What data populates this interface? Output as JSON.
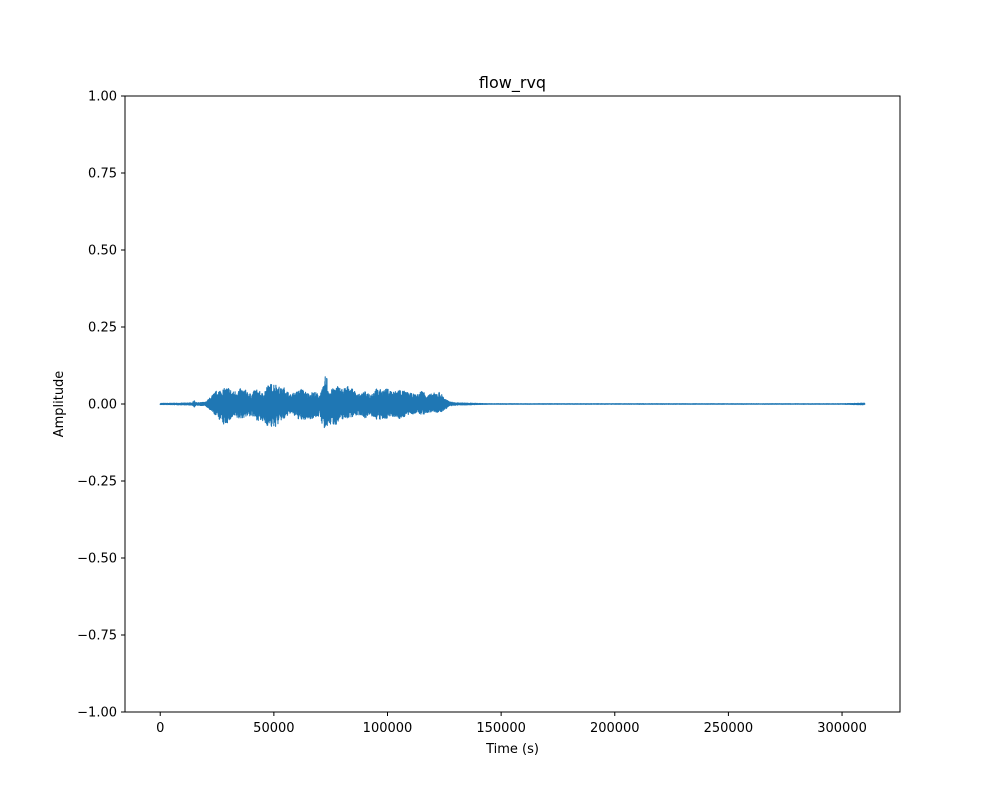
{
  "chart_data": {
    "type": "line",
    "title": "flow_rvq",
    "xlabel": "Time (s)",
    "ylabel": "Amplitude",
    "xlim": [
      -15500,
      325500
    ],
    "ylim": [
      -1.0,
      1.0
    ],
    "grid": false,
    "legend": "none",
    "series_color": "#1f77b4",
    "x_ticks": [
      0,
      50000,
      100000,
      150000,
      200000,
      250000,
      300000
    ],
    "x_tick_labels": [
      "0",
      "50000",
      "100000",
      "150000",
      "200000",
      "250000",
      "300000"
    ],
    "y_ticks": [
      -1.0,
      -0.75,
      -0.5,
      -0.25,
      0.0,
      0.25,
      0.5,
      0.75,
      1.0
    ],
    "y_tick_labels": [
      "−1.00",
      "−0.75",
      "−0.50",
      "−0.25",
      "0.00",
      "0.25",
      "0.50",
      "0.75",
      "1.00"
    ],
    "series": [
      {
        "name": "flow_rvq",
        "x_range": [
          0,
          310000
        ],
        "envelope": {
          "x": [
            0,
            10000,
            14000,
            15000,
            16000,
            20000,
            23000,
            25000,
            28000,
            30000,
            32000,
            35000,
            38000,
            40000,
            42000,
            45000,
            47000,
            50000,
            52000,
            53000,
            55000,
            57000,
            60000,
            62000,
            65000,
            68000,
            70000,
            72000,
            73000,
            74000,
            75000,
            78000,
            80000,
            83000,
            85000,
            88000,
            90000,
            93000,
            95000,
            98000,
            100000,
            103000,
            105000,
            108000,
            110000,
            113000,
            115000,
            118000,
            120000,
            123000,
            125000,
            127000,
            130000,
            135000,
            140000,
            145000,
            150000,
            200000,
            250000,
            300000,
            310000
          ],
          "max": [
            0.002,
            0.003,
            0.004,
            0.012,
            0.004,
            0.006,
            0.03,
            0.045,
            0.05,
            0.055,
            0.04,
            0.05,
            0.045,
            0.03,
            0.05,
            0.035,
            0.06,
            0.07,
            0.06,
            0.05,
            0.055,
            0.03,
            0.04,
            0.05,
            0.035,
            0.04,
            0.03,
            0.06,
            0.11,
            0.05,
            0.045,
            0.06,
            0.05,
            0.06,
            0.045,
            0.03,
            0.04,
            0.035,
            0.05,
            0.045,
            0.05,
            0.04,
            0.05,
            0.04,
            0.035,
            0.03,
            0.045,
            0.03,
            0.035,
            0.04,
            0.02,
            0.008,
            0.004,
            0.003,
            0.002,
            0.001,
            0.001,
            0.001,
            0.001,
            0.001,
            0.003
          ],
          "min": [
            -0.002,
            -0.003,
            -0.004,
            -0.01,
            -0.004,
            -0.006,
            -0.03,
            -0.04,
            -0.07,
            -0.06,
            -0.045,
            -0.05,
            -0.04,
            -0.04,
            -0.05,
            -0.06,
            -0.07,
            -0.08,
            -0.065,
            -0.055,
            -0.05,
            -0.03,
            -0.045,
            -0.055,
            -0.05,
            -0.045,
            -0.04,
            -0.08,
            -0.1,
            -0.06,
            -0.07,
            -0.065,
            -0.05,
            -0.045,
            -0.04,
            -0.035,
            -0.045,
            -0.04,
            -0.05,
            -0.055,
            -0.045,
            -0.04,
            -0.05,
            -0.04,
            -0.035,
            -0.03,
            -0.035,
            -0.03,
            -0.025,
            -0.03,
            -0.02,
            -0.008,
            -0.004,
            -0.003,
            -0.002,
            -0.001,
            -0.001,
            -0.001,
            -0.001,
            -0.001,
            -0.003
          ]
        }
      }
    ]
  }
}
